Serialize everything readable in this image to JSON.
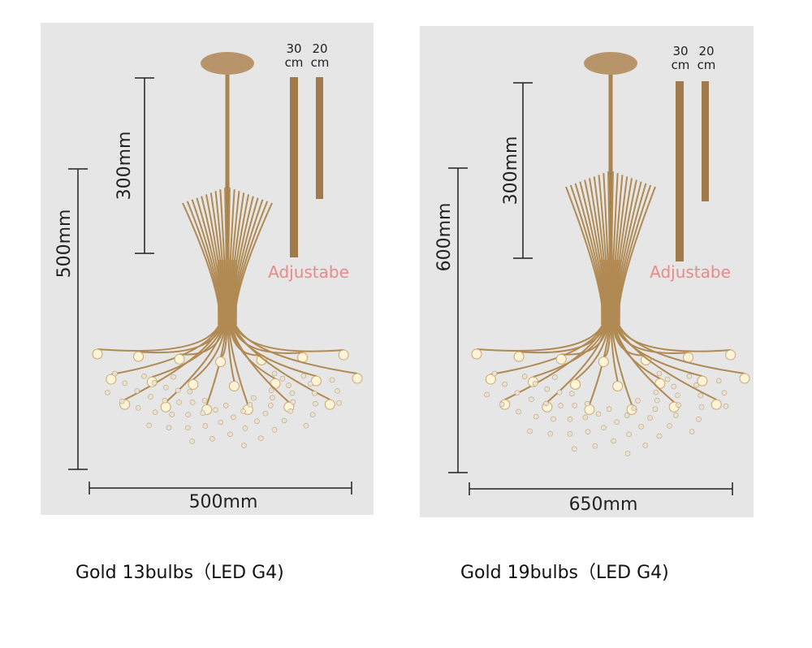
{
  "panels": [
    {
      "rods": [
        {
          "value": "30",
          "unit": "cm"
        },
        {
          "value": "20",
          "unit": "cm"
        }
      ],
      "rod_height": "300mm",
      "height": "500mm",
      "adjustable": "Adjustabe",
      "width": "500mm",
      "caption": "Gold 13bulbs（LED G4)"
    },
    {
      "rods": [
        {
          "value": "30",
          "unit": "cm"
        },
        {
          "value": "20",
          "unit": "cm"
        }
      ],
      "rod_height": "300mm",
      "height": "600mm",
      "adjustable": "Adjustabe",
      "width": "650mm",
      "caption": "Gold  19bulbs（LED G4)"
    }
  ]
}
